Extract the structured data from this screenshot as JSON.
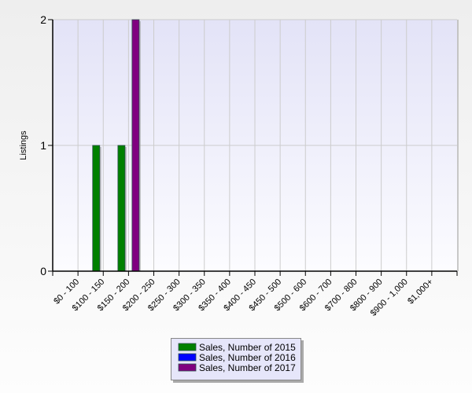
{
  "chart_data": {
    "type": "bar",
    "title": "",
    "xlabel": "",
    "ylabel": "Listings",
    "ylim": [
      0,
      2
    ],
    "yticks": [
      "0",
      "1",
      "2"
    ],
    "grid": true,
    "legend_position": "bottom",
    "categories": [
      "$0 - 100",
      "$100 - 150",
      "$150 - 200",
      "$200 - 250",
      "$250 - 300",
      "$300 - 350",
      "$350 - 400",
      "$400 - 450",
      "$450 - 500",
      "$500 - 600",
      "$600 - 700",
      "$700 - 800",
      "$800 - 900",
      "$900 - 1,000",
      "$1,000+"
    ],
    "series": [
      {
        "name": "Sales, Number of 2015",
        "color": "#008000",
        "values": [
          0,
          1,
          1,
          0,
          0,
          0,
          0,
          0,
          0,
          0,
          0,
          0,
          0,
          0,
          0
        ]
      },
      {
        "name": "Sales, Number of 2016",
        "color": "#0000ff",
        "values": [
          0,
          0,
          0,
          0,
          0,
          0,
          0,
          0,
          0,
          0,
          0,
          0,
          0,
          0,
          0
        ]
      },
      {
        "name": "Sales, Number of 2017",
        "color": "#800080",
        "values": [
          0,
          0,
          2,
          0,
          0,
          0,
          0,
          0,
          0,
          0,
          0,
          0,
          0,
          0,
          0
        ]
      }
    ]
  }
}
